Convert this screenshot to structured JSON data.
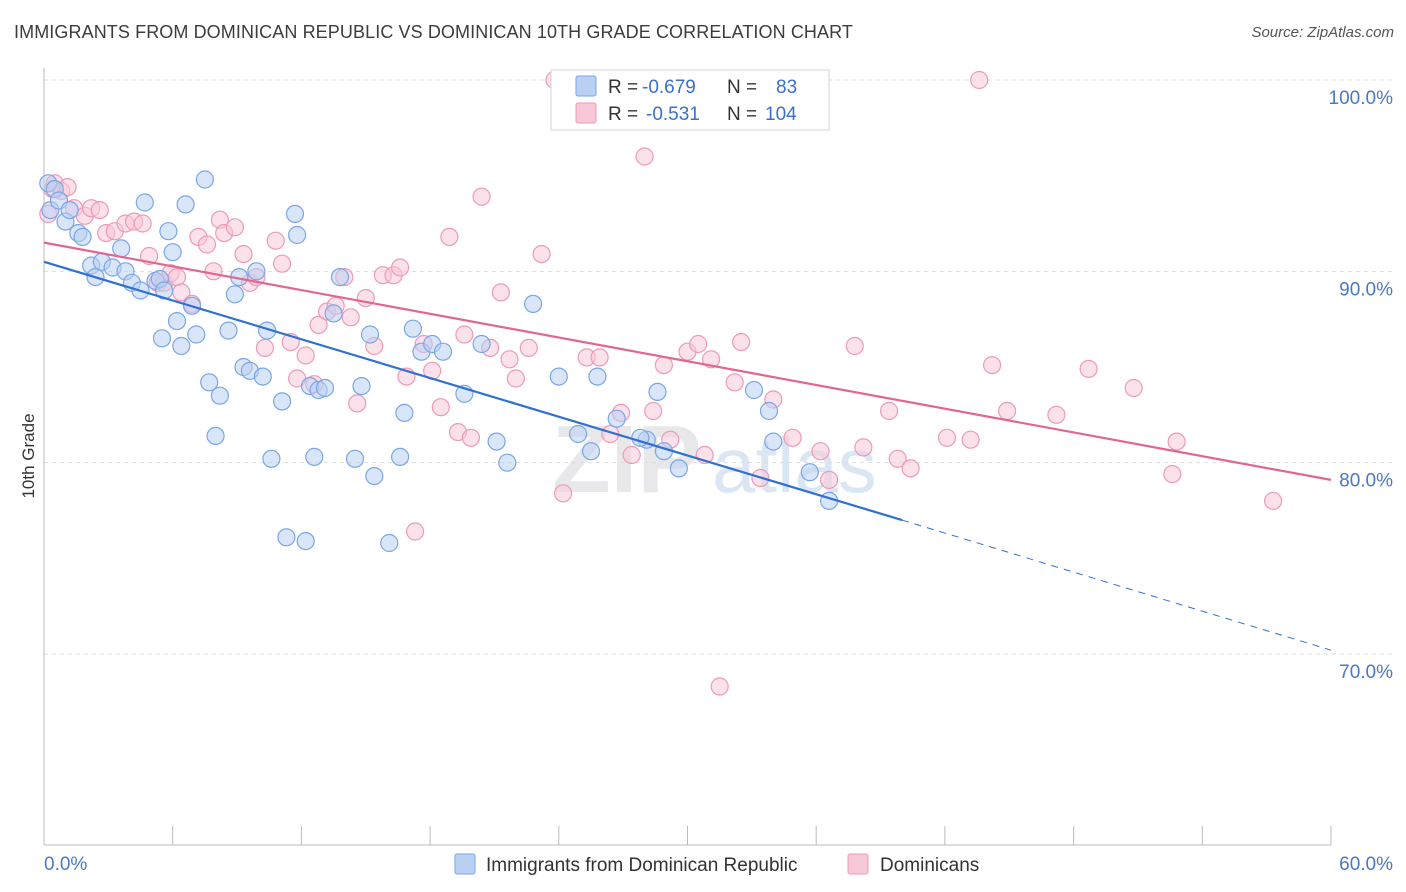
{
  "header": {
    "title": "IMMIGRANTS FROM DOMINICAN REPUBLIC VS DOMINICAN 10TH GRADE CORRELATION CHART",
    "source": "Source: ZipAtlas.com"
  },
  "watermark": {
    "part1": "ZIP",
    "part2": "atlas"
  },
  "chart_data": {
    "type": "scatter",
    "title": "IMMIGRANTS FROM DOMINICAN REPUBLIC VS DOMINICAN 10TH GRADE CORRELATION CHART",
    "xlabel": "",
    "ylabel": "10th Grade",
    "xlim": [
      0,
      60
    ],
    "ylim": [
      60,
      103
    ],
    "x_tick_labels": [
      "0.0%",
      "60.0%"
    ],
    "y_ticks": [
      70,
      80,
      90,
      100
    ],
    "y_tick_labels": [
      "70.0%",
      "80.0%",
      "90.0%",
      "100.0%"
    ],
    "legend_position": "bottom-center",
    "stats": [
      {
        "r_label": "R =",
        "r_value": "-0.679",
        "n_label": "N =",
        "n_value": "83"
      },
      {
        "r_label": "R =",
        "r_value": "-0.531",
        "n_label": "N =",
        "n_value": "104"
      }
    ],
    "series": [
      {
        "name": "Immigrants from Dominican Republic",
        "color": "#7aa6e8",
        "fill": "#b9d0f3",
        "line_color": "#3070d0",
        "trend": {
          "x0": 0,
          "y0": 90.5,
          "x1": 40,
          "y1": 77.0,
          "dash_to_x": 60,
          "dash_to_y": 70.2
        },
        "points": [
          [
            0.2,
            94.6
          ],
          [
            0.3,
            93.2
          ],
          [
            0.5,
            94.3
          ],
          [
            0.7,
            93.7
          ],
          [
            1.0,
            92.6
          ],
          [
            1.2,
            93.2
          ],
          [
            1.6,
            92.0
          ],
          [
            1.8,
            91.8
          ],
          [
            2.2,
            90.3
          ],
          [
            2.4,
            89.7
          ],
          [
            2.7,
            90.5
          ],
          [
            3.2,
            90.2
          ],
          [
            3.6,
            91.2
          ],
          [
            3.8,
            90.0
          ],
          [
            4.1,
            89.4
          ],
          [
            4.5,
            89.0
          ],
          [
            4.7,
            93.6
          ],
          [
            5.2,
            89.5
          ],
          [
            5.4,
            89.6
          ],
          [
            5.5,
            86.5
          ],
          [
            5.6,
            89.0
          ],
          [
            5.8,
            92.1
          ],
          [
            6.0,
            91.0
          ],
          [
            6.2,
            87.4
          ],
          [
            6.4,
            86.1
          ],
          [
            6.6,
            93.5
          ],
          [
            6.9,
            88.2
          ],
          [
            7.1,
            86.7
          ],
          [
            7.5,
            94.8
          ],
          [
            7.7,
            84.2
          ],
          [
            8.0,
            81.4
          ],
          [
            8.2,
            83.5
          ],
          [
            8.6,
            86.9
          ],
          [
            8.9,
            88.8
          ],
          [
            9.1,
            89.7
          ],
          [
            9.3,
            85.0
          ],
          [
            9.6,
            84.8
          ],
          [
            9.9,
            90.0
          ],
          [
            10.2,
            84.5
          ],
          [
            10.4,
            86.9
          ],
          [
            10.6,
            80.2
          ],
          [
            11.1,
            83.2
          ],
          [
            11.3,
            76.1
          ],
          [
            11.7,
            93.0
          ],
          [
            11.8,
            91.9
          ],
          [
            12.2,
            75.9
          ],
          [
            12.4,
            84.0
          ],
          [
            12.6,
            80.3
          ],
          [
            12.8,
            83.8
          ],
          [
            13.1,
            83.9
          ],
          [
            13.5,
            87.8
          ],
          [
            13.8,
            89.7
          ],
          [
            14.5,
            80.2
          ],
          [
            14.8,
            84.0
          ],
          [
            15.2,
            86.7
          ],
          [
            15.4,
            79.3
          ],
          [
            16.1,
            75.8
          ],
          [
            16.6,
            80.3
          ],
          [
            16.8,
            82.6
          ],
          [
            17.2,
            87.0
          ],
          [
            17.6,
            85.8
          ],
          [
            18.1,
            86.2
          ],
          [
            18.6,
            85.8
          ],
          [
            19.6,
            83.6
          ],
          [
            20.4,
            86.2
          ],
          [
            21.1,
            81.1
          ],
          [
            21.6,
            80.0
          ],
          [
            22.8,
            88.3
          ],
          [
            24.0,
            84.5
          ],
          [
            25.5,
            80.6
          ],
          [
            25.8,
            84.5
          ],
          [
            26.7,
            82.3
          ],
          [
            28.1,
            81.2
          ],
          [
            28.6,
            83.7
          ],
          [
            28.9,
            80.6
          ],
          [
            29.6,
            79.7
          ],
          [
            33.1,
            83.8
          ],
          [
            33.8,
            82.7
          ],
          [
            34.0,
            81.1
          ],
          [
            35.7,
            79.5
          ],
          [
            36.6,
            78.0
          ],
          [
            24.9,
            81.5
          ],
          [
            27.8,
            81.3
          ]
        ]
      },
      {
        "name": "Dominicans",
        "color": "#ee9ab5",
        "fill": "#f7c9d8",
        "line_color": "#e2668f",
        "trend": {
          "x0": 0,
          "y0": 91.5,
          "x1": 60,
          "y1": 79.1
        },
        "points": [
          [
            0.2,
            93.0
          ],
          [
            0.4,
            94.3
          ],
          [
            0.5,
            94.6
          ],
          [
            0.8,
            94.2
          ],
          [
            1.1,
            94.4
          ],
          [
            1.4,
            93.3
          ],
          [
            1.9,
            92.9
          ],
          [
            2.2,
            93.3
          ],
          [
            2.6,
            93.2
          ],
          [
            2.9,
            92.0
          ],
          [
            3.3,
            92.1
          ],
          [
            3.8,
            92.5
          ],
          [
            4.2,
            92.6
          ],
          [
            4.6,
            92.5
          ],
          [
            4.9,
            90.8
          ],
          [
            5.3,
            89.4
          ],
          [
            5.6,
            89.4
          ],
          [
            5.9,
            89.9
          ],
          [
            6.2,
            89.7
          ],
          [
            6.4,
            88.9
          ],
          [
            6.9,
            88.3
          ],
          [
            7.2,
            91.8
          ],
          [
            7.6,
            91.4
          ],
          [
            7.9,
            90.0
          ],
          [
            8.2,
            92.7
          ],
          [
            8.4,
            92.0
          ],
          [
            8.9,
            92.3
          ],
          [
            9.3,
            90.9
          ],
          [
            9.6,
            89.4
          ],
          [
            9.9,
            89.7
          ],
          [
            10.3,
            86.0
          ],
          [
            10.8,
            91.6
          ],
          [
            11.1,
            90.4
          ],
          [
            11.5,
            86.3
          ],
          [
            11.8,
            84.4
          ],
          [
            12.2,
            85.6
          ],
          [
            12.6,
            84.1
          ],
          [
            12.8,
            87.2
          ],
          [
            13.2,
            87.9
          ],
          [
            13.6,
            88.2
          ],
          [
            14.0,
            89.7
          ],
          [
            14.3,
            87.6
          ],
          [
            14.6,
            83.1
          ],
          [
            15.0,
            88.6
          ],
          [
            15.4,
            86.1
          ],
          [
            15.8,
            89.8
          ],
          [
            16.3,
            89.8
          ],
          [
            16.6,
            90.2
          ],
          [
            16.9,
            84.5
          ],
          [
            17.3,
            76.4
          ],
          [
            17.7,
            86.2
          ],
          [
            18.1,
            84.8
          ],
          [
            18.5,
            82.9
          ],
          [
            18.9,
            91.8
          ],
          [
            19.3,
            81.6
          ],
          [
            19.6,
            86.7
          ],
          [
            19.9,
            81.3
          ],
          [
            20.4,
            93.9
          ],
          [
            20.8,
            86.0
          ],
          [
            21.3,
            88.9
          ],
          [
            21.7,
            85.4
          ],
          [
            22.0,
            84.4
          ],
          [
            22.6,
            86.0
          ],
          [
            23.2,
            90.9
          ],
          [
            23.8,
            100.0
          ],
          [
            24.2,
            78.4
          ],
          [
            24.8,
            100.0
          ],
          [
            25.3,
            85.5
          ],
          [
            25.9,
            85.5
          ],
          [
            26.4,
            81.5
          ],
          [
            26.9,
            82.6
          ],
          [
            27.4,
            80.4
          ],
          [
            28.0,
            96.0
          ],
          [
            28.4,
            82.7
          ],
          [
            28.9,
            85.1
          ],
          [
            29.2,
            81.2
          ],
          [
            30.0,
            85.8
          ],
          [
            30.5,
            86.2
          ],
          [
            31.1,
            85.4
          ],
          [
            31.5,
            68.3
          ],
          [
            32.2,
            84.2
          ],
          [
            32.5,
            86.3
          ],
          [
            33.4,
            79.2
          ],
          [
            34.0,
            83.3
          ],
          [
            34.9,
            81.3
          ],
          [
            36.2,
            80.6
          ],
          [
            37.8,
            86.1
          ],
          [
            38.2,
            80.8
          ],
          [
            39.4,
            82.7
          ],
          [
            39.8,
            80.2
          ],
          [
            40.4,
            79.7
          ],
          [
            42.1,
            81.3
          ],
          [
            43.2,
            81.2
          ],
          [
            43.6,
            100.0
          ],
          [
            44.2,
            85.1
          ],
          [
            44.9,
            82.7
          ],
          [
            47.2,
            82.5
          ],
          [
            48.7,
            84.9
          ],
          [
            50.8,
            83.9
          ],
          [
            52.6,
            79.4
          ],
          [
            52.8,
            81.1
          ],
          [
            57.3,
            78.0
          ],
          [
            36.6,
            79.1
          ],
          [
            30.8,
            80.4
          ]
        ]
      }
    ]
  }
}
